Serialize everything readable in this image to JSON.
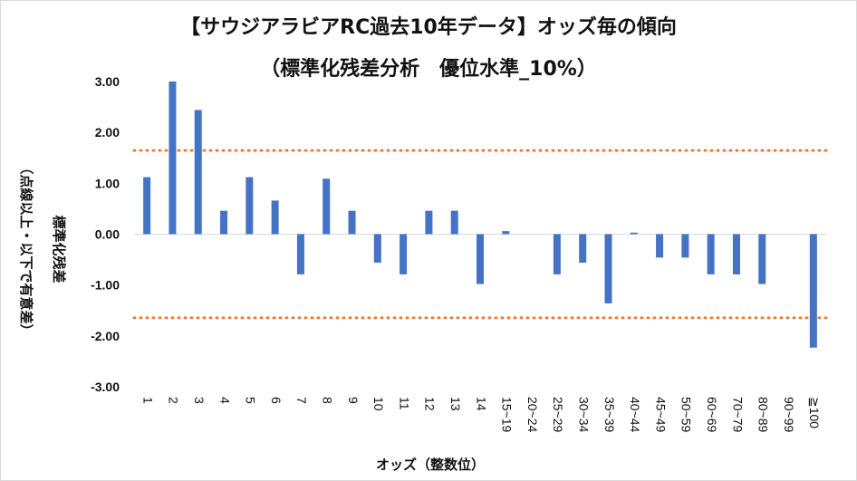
{
  "chart_data": {
    "type": "bar",
    "title": "【サウジアラビアRC過去10年データ】オッズ毎の傾向",
    "subtitle": "（標準化残差分析　優位水準_10%）",
    "xlabel": "オッズ（整数位）",
    "ylabel_line1": "標準化残差",
    "ylabel_line2": "（点線以上・以下で有意差）",
    "ylim": [
      -3,
      3
    ],
    "yticks": [
      "3.00",
      "2.00",
      "1.00",
      "0.00",
      "-1.00",
      "-2.00",
      "-3.00"
    ],
    "ytick_values": [
      3,
      2,
      1,
      0,
      -1,
      -2,
      -3
    ],
    "threshold_lines": [
      1.645,
      -1.645
    ],
    "colors": {
      "bar": "#4472C4",
      "threshold": "#ED7D31",
      "grid": "#d9d9d9"
    },
    "categories": [
      "1",
      "2",
      "3",
      "4",
      "5",
      "6",
      "7",
      "8",
      "9",
      "10",
      "11",
      "12",
      "13",
      "14",
      "15~19",
      "20~24",
      "25~29",
      "30~34",
      "35~39",
      "40~44",
      "45~49",
      "50~59",
      "60~69",
      "70~79",
      "80~89",
      "90~99",
      "≧100"
    ],
    "values": [
      1.12,
      3.0,
      2.44,
      0.46,
      1.12,
      0.66,
      -0.79,
      1.09,
      0.46,
      -0.56,
      -0.79,
      0.46,
      0.46,
      -0.98,
      0.06,
      0.0,
      -0.79,
      -0.56,
      -1.36,
      0.03,
      -0.46,
      -0.46,
      -0.79,
      -0.79,
      -0.98,
      0.0,
      -2.23
    ]
  }
}
